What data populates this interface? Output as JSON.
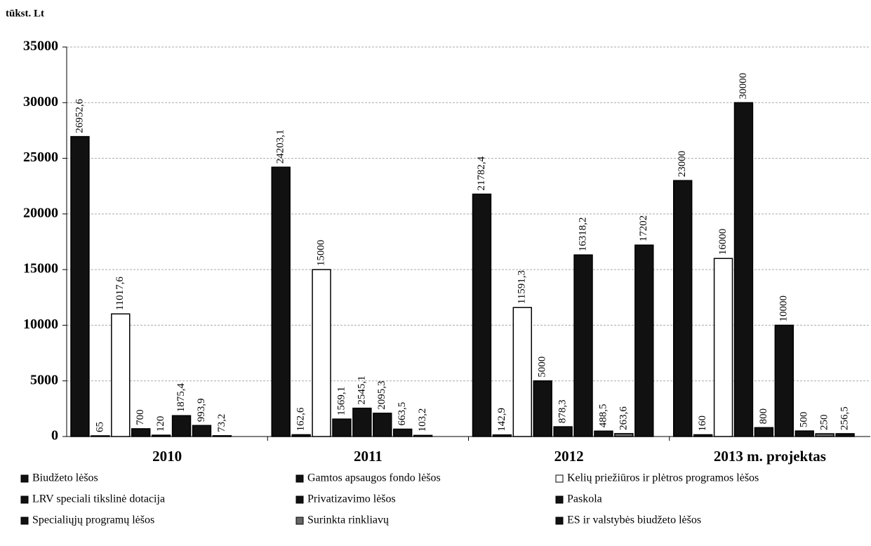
{
  "chart_data": {
    "type": "bar",
    "y_unit": "tūkst. Lt",
    "categories": [
      "2010",
      "2011",
      "2012",
      "2013 m. projektas"
    ],
    "series": [
      {
        "name": "Biudžeto lėšos",
        "color": "#111111",
        "values": [
          26952.6,
          24203.1,
          21782.4,
          23000
        ],
        "value_labels": [
          "26952,6",
          "24203,1",
          "21782,4",
          "23000"
        ]
      },
      {
        "name": "Gamtos apsaugos fondo lėšos",
        "color": "#111111",
        "values": [
          65,
          162.6,
          142.9,
          160
        ],
        "value_labels": [
          "65",
          "162,6",
          "142,9",
          "160"
        ]
      },
      {
        "name": "Kelių priežiūros ir plėtros programos lėšos",
        "color": "#ffffff",
        "values": [
          11017.6,
          15000,
          11591.3,
          16000
        ],
        "value_labels": [
          "11017,6",
          "15000",
          "11591,3",
          "16000"
        ]
      },
      {
        "name": "LRV speciali tikslinė dotacija",
        "color": "#111111",
        "values": [
          700,
          1569.1,
          5000,
          30000
        ],
        "value_labels": [
          "700",
          "1569,1",
          "5000",
          "30000"
        ]
      },
      {
        "name": "Privatizavimo lėšos",
        "color": "#111111",
        "values": [
          120,
          2545.1,
          878.3,
          800
        ],
        "value_labels": [
          "120",
          "2545,1",
          "878,3",
          "800"
        ]
      },
      {
        "name": "Paskola",
        "color": "#111111",
        "values": [
          1875.4,
          2095.3,
          16318.2,
          10000
        ],
        "value_labels": [
          "1875,4",
          "2095,3",
          "16318,2",
          "10000"
        ]
      },
      {
        "name": "Specialiųjų programų lėšos",
        "color": "#111111",
        "values": [
          993.9,
          663.5,
          488.5,
          500
        ],
        "value_labels": [
          "993,9",
          "663,5",
          "488,5",
          "500"
        ]
      },
      {
        "name": "Surinkta rinkliavų",
        "color": "#666666",
        "values": [
          73.2,
          103.2,
          263.6,
          250
        ],
        "value_labels": [
          "73,2",
          "103,2",
          "263,6",
          "250"
        ]
      },
      {
        "name": "ES ir valstybės biudžeto lėšos",
        "color": "#111111",
        "values": [
          null,
          null,
          17202,
          256.5
        ],
        "value_labels": [
          null,
          null,
          "17202",
          "256,5"
        ]
      }
    ],
    "ylim": [
      0,
      35000
    ],
    "yticks": [
      0,
      5000,
      10000,
      15000,
      20000,
      25000,
      30000,
      35000
    ],
    "grid": true,
    "legend": "bottom"
  }
}
